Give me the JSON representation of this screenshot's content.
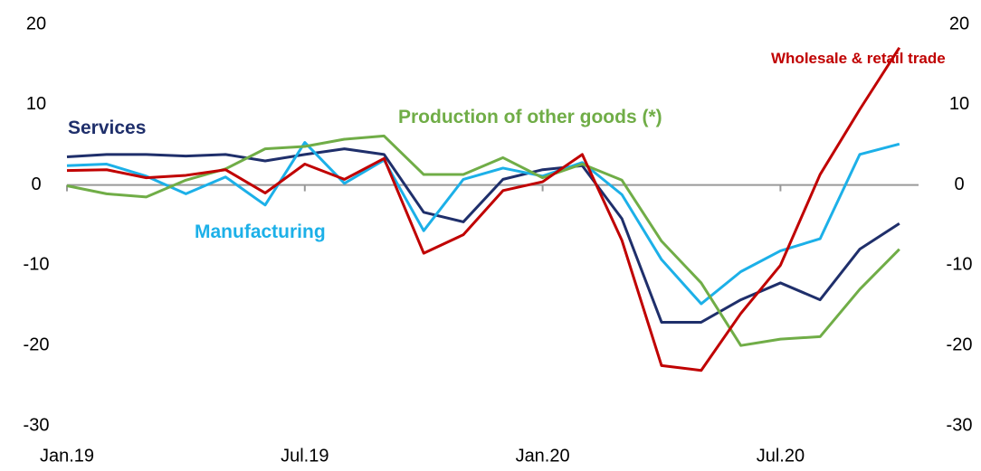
{
  "chart_data": {
    "type": "line",
    "categories": [
      "Jan.19",
      null,
      null,
      null,
      null,
      null,
      "Jul.19",
      null,
      null,
      null,
      null,
      null,
      "Jan.20",
      null,
      null,
      null,
      null,
      null,
      "Jul.20",
      null,
      null,
      null
    ],
    "ylim": [
      -30,
      20
    ],
    "yticks": [
      -30,
      -20,
      -10,
      0,
      10,
      20
    ],
    "series": [
      {
        "name": "Services",
        "color": "#1f2f6b",
        "values": [
          3.5,
          3.8,
          3.8,
          3.6,
          3.8,
          3.0,
          3.8,
          4.5,
          3.8,
          -3.4,
          -4.6,
          0.7,
          1.9,
          2.4,
          -4.2,
          -17.1,
          -17.1,
          -14.3,
          -12.2,
          -14.3,
          -8.0,
          -4.8
        ]
      },
      {
        "name": "Manufacturing",
        "color": "#1cb0e8",
        "values": [
          2.4,
          2.6,
          1.1,
          -1.1,
          1.0,
          -2.5,
          5.3,
          0.2,
          3.1,
          -5.7,
          0.7,
          2.1,
          1.1,
          2.8,
          -1.2,
          -9.3,
          -14.8,
          -10.8,
          -8.2,
          -6.7,
          3.8,
          5.1
        ]
      },
      {
        "name": "Production of other goods (*)",
        "color": "#70ad47",
        "values": [
          -0.1,
          -1.1,
          -1.5,
          0.6,
          2.0,
          4.5,
          4.8,
          5.7,
          6.1,
          1.3,
          1.3,
          3.4,
          0.9,
          2.6,
          0.6,
          -7.0,
          -12.2,
          -20.0,
          -19.2,
          -18.9,
          -13.0,
          -8.0
        ]
      },
      {
        "name": "Wholesale & retail trade",
        "color": "#c00000",
        "values": [
          1.8,
          1.9,
          0.9,
          1.2,
          1.9,
          -1.0,
          2.6,
          0.7,
          3.3,
          -8.5,
          -6.2,
          -0.7,
          0.4,
          3.8,
          -6.9,
          -22.5,
          -23.1,
          -16.0,
          -10.0,
          1.3,
          9.4,
          17.1
        ]
      }
    ]
  }
}
